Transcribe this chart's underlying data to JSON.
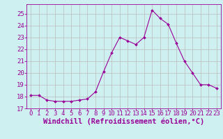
{
  "x": [
    0,
    1,
    2,
    3,
    4,
    5,
    6,
    7,
    8,
    9,
    10,
    11,
    12,
    13,
    14,
    15,
    16,
    17,
    18,
    19,
    20,
    21,
    22,
    23
  ],
  "y": [
    18.1,
    18.1,
    17.7,
    17.6,
    17.6,
    17.6,
    17.7,
    17.8,
    18.4,
    20.1,
    21.7,
    23.0,
    22.7,
    22.4,
    23.0,
    25.3,
    24.6,
    24.1,
    22.5,
    21.0,
    20.0,
    19.0,
    19.0,
    18.7
  ],
  "line_color": "#990099",
  "marker": "D",
  "marker_size": 2.0,
  "bg_color": "#cff0f0",
  "grid_color": "#bbbbbb",
  "xlabel": "Windchill (Refroidissement éolien,°C)",
  "xlim": [
    -0.5,
    23.5
  ],
  "ylim": [
    17.0,
    25.8
  ],
  "yticks": [
    17,
    18,
    19,
    20,
    21,
    22,
    23,
    24,
    25
  ],
  "xticks": [
    0,
    1,
    2,
    3,
    4,
    5,
    6,
    7,
    8,
    9,
    10,
    11,
    12,
    13,
    14,
    15,
    16,
    17,
    18,
    19,
    20,
    21,
    22,
    23
  ],
  "tick_color": "#990099",
  "label_color": "#990099",
  "tick_fontsize": 6.5,
  "xlabel_fontsize": 7.5
}
